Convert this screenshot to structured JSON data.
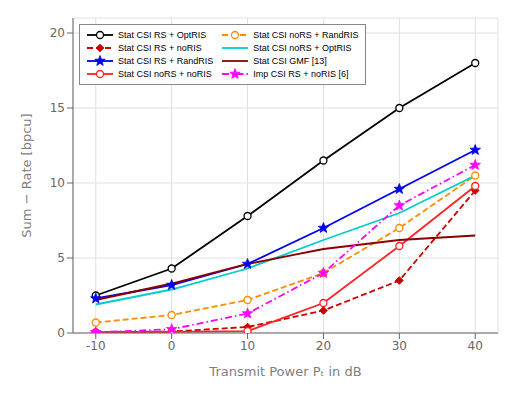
{
  "chart_data": {
    "type": "line",
    "x": [
      -10,
      0,
      10,
      20,
      30,
      40
    ],
    "series": [
      {
        "name": "Stat CSI RS + OptRIS",
        "color": "#000000",
        "line_style": "solid",
        "marker": "circle",
        "values": [
          2.5,
          4.3,
          7.8,
          11.5,
          15.0,
          18.0
        ]
      },
      {
        "name": "Stat CSI RS + noRIS",
        "color": "#CC0000",
        "line_style": "dashed",
        "marker": "diamond",
        "values": [
          0.05,
          0.1,
          0.4,
          1.5,
          3.5,
          9.5
        ]
      },
      {
        "name": "Stat CSI RS + RandRIS",
        "color": "#0000EE",
        "line_style": "solid",
        "marker": "star",
        "values": [
          2.3,
          3.2,
          4.6,
          7.0,
          9.6,
          12.2
        ]
      },
      {
        "name": "Stat CSI noRS + noRIS",
        "color": "#FF2222",
        "line_style": "solid",
        "marker": "circle",
        "values": [
          0.05,
          0.08,
          0.12,
          2.0,
          5.8,
          9.8
        ]
      },
      {
        "name": "Stat CSI noRS + RandRIS",
        "color": "#FF8C00",
        "line_style": "dashed",
        "marker": "circle",
        "values": [
          0.7,
          1.2,
          2.2,
          4.0,
          7.0,
          10.5
        ]
      },
      {
        "name": "Stat CSI noRS + OptRIS",
        "color": "#00CCCC",
        "line_style": "solid",
        "marker": "none",
        "values": [
          1.9,
          2.9,
          4.3,
          6.2,
          8.0,
          10.5
        ]
      },
      {
        "name": "Stat CSI GMF [13]",
        "color": "#8B0000",
        "line_style": "solid",
        "marker": "none",
        "values": [
          2.2,
          3.3,
          4.6,
          5.6,
          6.2,
          6.5
        ]
      },
      {
        "name": "Imp CSI RS + noRIS [6]",
        "color": "#FF00FF",
        "line_style": "dashdot",
        "marker": "star",
        "values": [
          0.05,
          0.25,
          1.3,
          4.0,
          8.5,
          11.2
        ]
      }
    ],
    "xlim": [
      -13,
      43
    ],
    "ylim": [
      0,
      21
    ],
    "xticks": [
      -10,
      0,
      10,
      20,
      30,
      40
    ],
    "yticks": [
      0,
      5,
      10,
      15,
      20
    ],
    "xlabel": "Transmit Power Pₜ in dB",
    "ylabel": "Sum − Rate [bpcu]",
    "grid": true,
    "legend": "upper left"
  }
}
